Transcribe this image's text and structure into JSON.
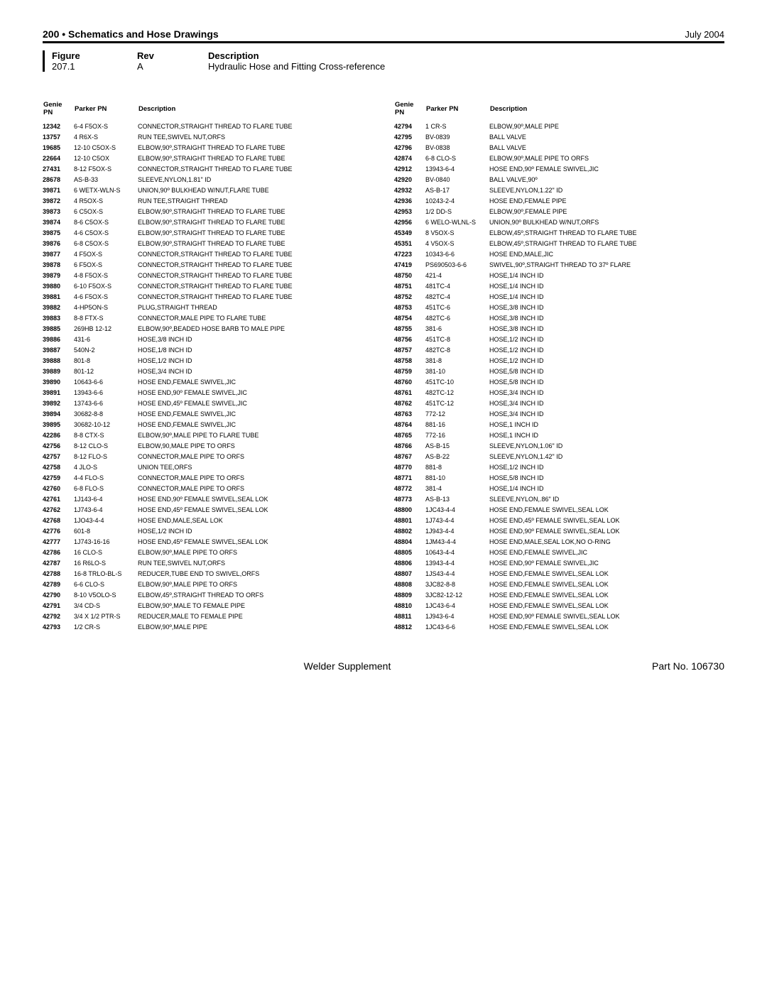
{
  "header": {
    "section": "200 • Schematics and Hose Drawings",
    "date": "July 2004"
  },
  "meta": {
    "labels": {
      "figure": "Figure",
      "rev": "Rev",
      "description": "Description"
    },
    "figure": "207.1",
    "rev": "A",
    "description": "Hydraulic Hose and Fitting Cross-reference"
  },
  "table_headers": {
    "genie": "Genie PN",
    "parker": "Parker PN",
    "desc": "Description"
  },
  "left": [
    {
      "g": "12342",
      "p": "6-4 F5OX-S",
      "d": "CONNECTOR,STRAIGHT THREAD TO FLARE TUBE"
    },
    {
      "g": "13757",
      "p": "4 R6X-S",
      "d": "RUN TEE,SWIVEL NUT,ORFS"
    },
    {
      "g": "19685",
      "p": "12-10 C5OX-S",
      "d": "ELBOW,90º,STRAIGHT THREAD TO FLARE TUBE"
    },
    {
      "g": "22664",
      "p": "12-10 C5OX",
      "d": "ELBOW,90º,STRAIGHT THREAD TO FLARE TUBE"
    },
    {
      "g": "27431",
      "p": "8-12 F5OX-S",
      "d": "CONNECTOR,STRAIGHT THREAD TO FLARE TUBE"
    },
    {
      "g": "28678",
      "p": "AS-B-33",
      "d": "SLEEVE,NYLON,1.81\" ID"
    },
    {
      "g": "39871",
      "p": "6 WETX-WLN-S",
      "d": "UNION,90º BULKHEAD W/NUT,FLARE TUBE"
    },
    {
      "g": "39872",
      "p": "4 R5OX-S",
      "d": "RUN TEE,STRAIGHT THREAD"
    },
    {
      "g": "39873",
      "p": "6 C5OX-S",
      "d": "ELBOW,90º,STRAIGHT THREAD TO FLARE TUBE"
    },
    {
      "g": "39874",
      "p": "8-6 C5OX-S",
      "d": "ELBOW,90º,STRAIGHT THREAD TO FLARE TUBE"
    },
    {
      "g": "39875",
      "p": "4-6 C5OX-S",
      "d": "ELBOW,90º,STRAIGHT THREAD TO FLARE TUBE"
    },
    {
      "g": "39876",
      "p": "6-8 C5OX-S",
      "d": "ELBOW,90º,STRAIGHT THREAD TO FLARE TUBE"
    },
    {
      "g": "39877",
      "p": "4 F5OX-S",
      "d": "CONNECTOR,STRAIGHT THREAD TO FLARE TUBE"
    },
    {
      "g": "39878",
      "p": "6 F5OX-S",
      "d": "CONNECTOR,STRAIGHT THREAD TO FLARE TUBE"
    },
    {
      "g": "39879",
      "p": "4-8 F5OX-S",
      "d": "CONNECTOR,STRAIGHT THREAD TO FLARE TUBE"
    },
    {
      "g": "39880",
      "p": "6-10 F5OX-S",
      "d": "CONNECTOR,STRAIGHT THREAD TO FLARE TUBE"
    },
    {
      "g": "39881",
      "p": "4-6 F5OX-S",
      "d": "CONNECTOR,STRAIGHT THREAD TO FLARE TUBE"
    },
    {
      "g": "39882",
      "p": "4-HP5ON-S",
      "d": "PLUG,STRAIGHT THREAD"
    },
    {
      "g": "39883",
      "p": "8-8 FTX-S",
      "d": "CONNECTOR,MALE PIPE TO FLARE TUBE"
    },
    {
      "g": "39885",
      "p": "269HB 12-12",
      "d": "ELBOW,90º,BEADED HOSE BARB TO MALE PIPE"
    },
    {
      "g": "39886",
      "p": "431-6",
      "d": "HOSE,3/8 INCH ID"
    },
    {
      "g": "39887",
      "p": "540N-2",
      "d": "HOSE,1/8 INCH ID"
    },
    {
      "g": "39888",
      "p": "801-8",
      "d": "HOSE,1/2 INCH ID"
    },
    {
      "g": "39889",
      "p": "801-12",
      "d": "HOSE,3/4 INCH ID"
    },
    {
      "g": "39890",
      "p": "10643-6-6",
      "d": "HOSE END,FEMALE SWIVEL,JIC"
    },
    {
      "g": "39891",
      "p": "13943-6-6",
      "d": "HOSE END,90º FEMALE SWIVEL,JIC"
    },
    {
      "g": "39892",
      "p": "13743-6-6",
      "d": "HOSE END,45º FEMALE SWIVEL,JIC"
    },
    {
      "g": "39894",
      "p": "30682-8-8",
      "d": "HOSE END,FEMALE SWIVEL,JIC"
    },
    {
      "g": "39895",
      "p": "30682-10-12",
      "d": "HOSE END,FEMALE SWIVEL,JIC"
    },
    {
      "g": "42286",
      "p": "8-8 CTX-S",
      "d": "ELBOW,90º,MALE PIPE TO FLARE TUBE"
    },
    {
      "g": "42756",
      "p": "8-12 CLO-S",
      "d": "ELBOW,90,MALE PIPE TO ORFS"
    },
    {
      "g": "42757",
      "p": "8-12 FLO-S",
      "d": "CONNECTOR,MALE PIPE TO ORFS"
    },
    {
      "g": "42758",
      "p": "4 JLO-S",
      "d": "UNION TEE,ORFS"
    },
    {
      "g": "42759",
      "p": "4-4 FLO-S",
      "d": "CONNECTOR,MALE PIPE TO ORFS"
    },
    {
      "g": "42760",
      "p": "6-8 FLO-S",
      "d": "CONNECTOR,MALE PIPE TO ORFS"
    },
    {
      "g": "42761",
      "p": "1J143-6-4",
      "d": "HOSE END,90º FEMALE SWIVEL,SEAL LOK"
    },
    {
      "g": "42762",
      "p": "1J743-6-4",
      "d": "HOSE END,45º FEMALE SWIVEL,SEAL LOK"
    },
    {
      "g": "42768",
      "p": "1JO43-4-4",
      "d": "HOSE END,MALE,SEAL LOK"
    },
    {
      "g": "42776",
      "p": "601-8",
      "d": "HOSE,1/2 INCH ID"
    },
    {
      "g": "42777",
      "p": "1J743-16-16",
      "d": "HOSE END,45º FEMALE SWIVEL,SEAL LOK"
    },
    {
      "g": "42786",
      "p": "16 CLO-S",
      "d": "ELBOW,90º,MALE PIPE TO ORFS"
    },
    {
      "g": "42787",
      "p": "16 R6LO-S",
      "d": "RUN TEE,SWIVEL NUT,ORFS"
    },
    {
      "g": "42788",
      "p": "16-8 TRLO-BL-S",
      "d": "REDUCER,TUBE END TO SWIVEL,ORFS"
    },
    {
      "g": "42789",
      "p": "6-6 CLO-S",
      "d": "ELBOW,90º,MALE PIPE TO ORFS"
    },
    {
      "g": "42790",
      "p": "8-10 V5OLO-S",
      "d": "ELBOW,45º,STRAIGHT THREAD TO ORFS"
    },
    {
      "g": "42791",
      "p": "3/4 CD-S",
      "d": "ELBOW,90º,MALE TO FEMALE PIPE"
    },
    {
      "g": "42792",
      "p": "3/4 X 1/2 PTR-S",
      "d": "REDUCER,MALE TO FEMALE PIPE"
    },
    {
      "g": "42793",
      "p": "1/2 CR-S",
      "d": "ELBOW,90º,MALE PIPE"
    }
  ],
  "right": [
    {
      "g": "42794",
      "p": "1 CR-S",
      "d": "ELBOW,90º,MALE PIPE"
    },
    {
      "g": "42795",
      "p": "BV-0839",
      "d": "BALL VALVE"
    },
    {
      "g": "42796",
      "p": "BV-0838",
      "d": "BALL VALVE"
    },
    {
      "g": "42874",
      "p": "6-8 CLO-S",
      "d": "ELBOW,90º,MALE PIPE TO ORFS"
    },
    {
      "g": "42912",
      "p": "13943-6-4",
      "d": "HOSE END,90º FEMALE SWIVEL,JIC"
    },
    {
      "g": "42920",
      "p": "BV-0840",
      "d": "BALL VALVE,90º"
    },
    {
      "g": "42932",
      "p": "AS-B-17",
      "d": "SLEEVE,NYLON,1.22\" ID"
    },
    {
      "g": "42936",
      "p": "10243-2-4",
      "d": "HOSE END,FEMALE PIPE"
    },
    {
      "g": "42953",
      "p": "1/2 DD-S",
      "d": "ELBOW,90º,FEMALE PIPE"
    },
    {
      "g": "42956",
      "p": "6 WELO-WLNL-S",
      "d": "UNION,90º BULKHEAD W/NUT,ORFS"
    },
    {
      "g": "45349",
      "p": "8 V5OX-S",
      "d": "ELBOW,45º,STRAIGHT THREAD TO FLARE TUBE"
    },
    {
      "g": "45351",
      "p": "4 V5OX-S",
      "d": "ELBOW,45º,STRAIGHT THREAD TO FLARE TUBE"
    },
    {
      "g": "47223",
      "p": "10343-6-6",
      "d": "HOSE END,MALE,JIC"
    },
    {
      "g": "47419",
      "p": "PS690503-6-6",
      "d": "SWIVEL,90º,STRAIGHT THREAD TO 37º FLARE"
    },
    {
      "g": "48750",
      "p": "421-4",
      "d": "HOSE,1/4 INCH ID"
    },
    {
      "g": "48751",
      "p": "481TC-4",
      "d": "HOSE,1/4 INCH ID"
    },
    {
      "g": "48752",
      "p": "482TC-4",
      "d": "HOSE,1/4 INCH ID"
    },
    {
      "g": "48753",
      "p": "451TC-6",
      "d": "HOSE,3/8 INCH ID"
    },
    {
      "g": "48754",
      "p": "482TC-6",
      "d": "HOSE,3/8 INCH ID"
    },
    {
      "g": "48755",
      "p": "381-6",
      "d": "HOSE,3/8 INCH ID"
    },
    {
      "g": "48756",
      "p": "451TC-8",
      "d": "HOSE,1/2 INCH ID"
    },
    {
      "g": "48757",
      "p": "482TC-8",
      "d": "HOSE,1/2 INCH ID"
    },
    {
      "g": "48758",
      "p": "381-8",
      "d": "HOSE,1/2 INCH ID"
    },
    {
      "g": "48759",
      "p": "381-10",
      "d": "HOSE,5/8 INCH ID"
    },
    {
      "g": "48760",
      "p": "451TC-10",
      "d": "HOSE,5/8 INCH ID"
    },
    {
      "g": "48761",
      "p": "482TC-12",
      "d": "HOSE,3/4 INCH ID"
    },
    {
      "g": "48762",
      "p": "451TC-12",
      "d": "HOSE,3/4 INCH ID"
    },
    {
      "g": "48763",
      "p": "772-12",
      "d": "HOSE,3/4 INCH ID"
    },
    {
      "g": "48764",
      "p": "881-16",
      "d": "HOSE,1 INCH ID"
    },
    {
      "g": "48765",
      "p": "772-16",
      "d": "HOSE,1 INCH ID"
    },
    {
      "g": "48766",
      "p": "AS-B-15",
      "d": "SLEEVE,NYLON,1.06\" ID"
    },
    {
      "g": "48767",
      "p": "AS-B-22",
      "d": "SLEEVE,NYLON,1.42\" ID"
    },
    {
      "g": "48770",
      "p": "881-8",
      "d": "HOSE,1/2 INCH ID"
    },
    {
      "g": "48771",
      "p": "881-10",
      "d": "HOSE,5/8 INCH ID"
    },
    {
      "g": "48772",
      "p": "381-4",
      "d": "HOSE,1/4 INCH ID"
    },
    {
      "g": "48773",
      "p": "AS-B-13",
      "d": "SLEEVE,NYLON,.86\" ID"
    },
    {
      "g": "48800",
      "p": "1JC43-4-4",
      "d": "HOSE END,FEMALE SWIVEL,SEAL LOK"
    },
    {
      "g": "48801",
      "p": "1J743-4-4",
      "d": "HOSE END,45º FEMALE SWIVEL,SEAL LOK"
    },
    {
      "g": "48802",
      "p": "1J943-4-4",
      "d": "HOSE END,90º FEMALE SWIVEL,SEAL LOK"
    },
    {
      "g": "48804",
      "p": "1JM43-4-4",
      "d": "HOSE END,MALE,SEAL LOK,NO O-RING"
    },
    {
      "g": "48805",
      "p": "10643-4-4",
      "d": "HOSE END,FEMALE SWIVEL,JIC"
    },
    {
      "g": "48806",
      "p": "13943-4-4",
      "d": "HOSE END,90º FEMALE SWIVEL,JIC"
    },
    {
      "g": "48807",
      "p": "1JS43-4-4",
      "d": "HOSE END,FEMALE SWIVEL,SEAL LOK"
    },
    {
      "g": "48808",
      "p": "3JC82-8-8",
      "d": "HOSE END,FEMALE SWIVEL,SEAL LOK"
    },
    {
      "g": "48809",
      "p": "3JC82-12-12",
      "d": "HOSE END,FEMALE SWIVEL,SEAL LOK"
    },
    {
      "g": "48810",
      "p": "1JC43-6-4",
      "d": "HOSE END,FEMALE SWIVEL,SEAL LOK"
    },
    {
      "g": "48811",
      "p": "1J943-6-4",
      "d": "HOSE END,90º FEMALE SWIVEL,SEAL LOK"
    },
    {
      "g": "48812",
      "p": "1JC43-6-6",
      "d": "HOSE END,FEMALE SWIVEL,SEAL LOK"
    }
  ],
  "footer": {
    "center": "Welder Supplement",
    "right": "Part No. 106730"
  }
}
